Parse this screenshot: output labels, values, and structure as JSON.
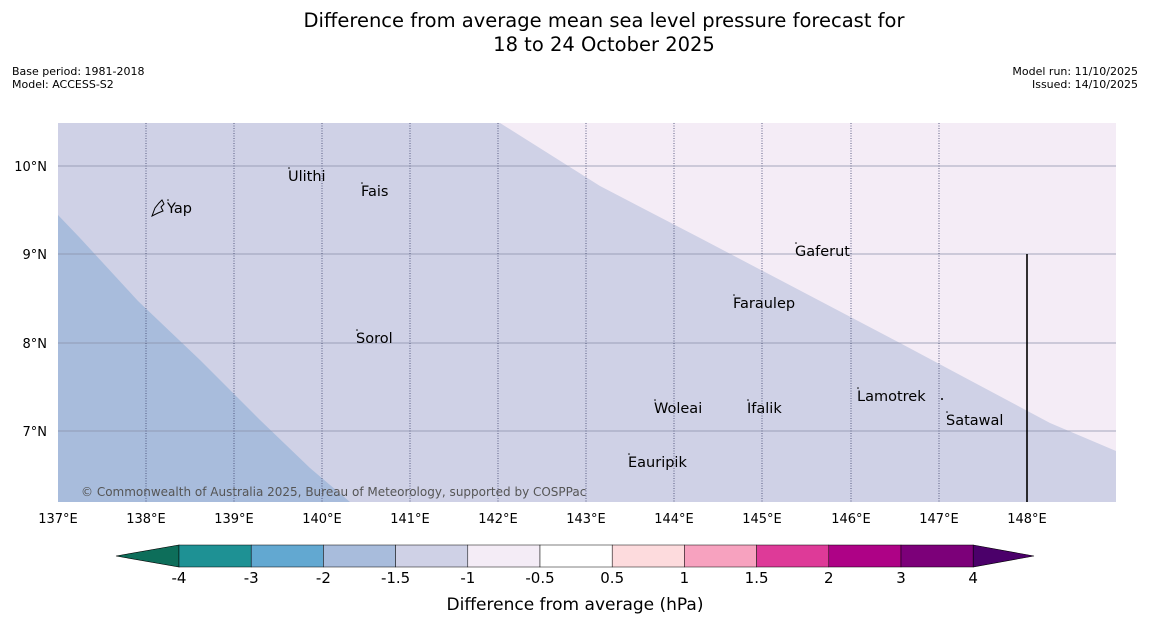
{
  "title_line1": "Difference from average mean sea level pressure forecast for",
  "title_line2": "18 to 24 October 2025",
  "meta": {
    "base_period": "Base period: 1981-2018",
    "model": "Model: ACCESS-S2",
    "model_run": "Model run: 11/10/2025",
    "issued": "Issued: 14/10/2025"
  },
  "map": {
    "lon_ticks": [
      "137°E",
      "138°E",
      "139°E",
      "140°E",
      "141°E",
      "142°E",
      "143°E",
      "144°E",
      "145°E",
      "146°E",
      "147°E",
      "148°E"
    ],
    "lat_ticks": [
      "10°N",
      "9°N",
      "8°N",
      "7°N"
    ],
    "places": [
      {
        "name": "Ulithi"
      },
      {
        "name": "Fais"
      },
      {
        "name": "Yap"
      },
      {
        "name": "Gaferut"
      },
      {
        "name": "Faraulep"
      },
      {
        "name": "Sorol"
      },
      {
        "name": "Lamotrek"
      },
      {
        "name": "Woleai"
      },
      {
        "name": "Ifalik"
      },
      {
        "name": "Satawal"
      },
      {
        "name": "Eauripik"
      }
    ],
    "copyright": "© Commonwealth of Australia 2025, Bureau of Meteorology, supported by COSPPac"
  },
  "colorbar": {
    "title": "Difference from average (hPa)",
    "tick_labels": [
      "-4",
      "-3",
      "-2",
      "-1.5",
      "-1",
      "-0.5",
      "0.5",
      "1",
      "1.5",
      "2",
      "3",
      "4"
    ],
    "colors": [
      "#0d6e5a",
      "#1e9194",
      "#62a8d1",
      "#a8bcdc",
      "#cfd1e6",
      "#f4ecf6",
      "#ffffff",
      "#fddbdd",
      "#f7a2bf",
      "#de3a98",
      "#ae0286",
      "#7c0079",
      "#4b006a"
    ]
  }
}
